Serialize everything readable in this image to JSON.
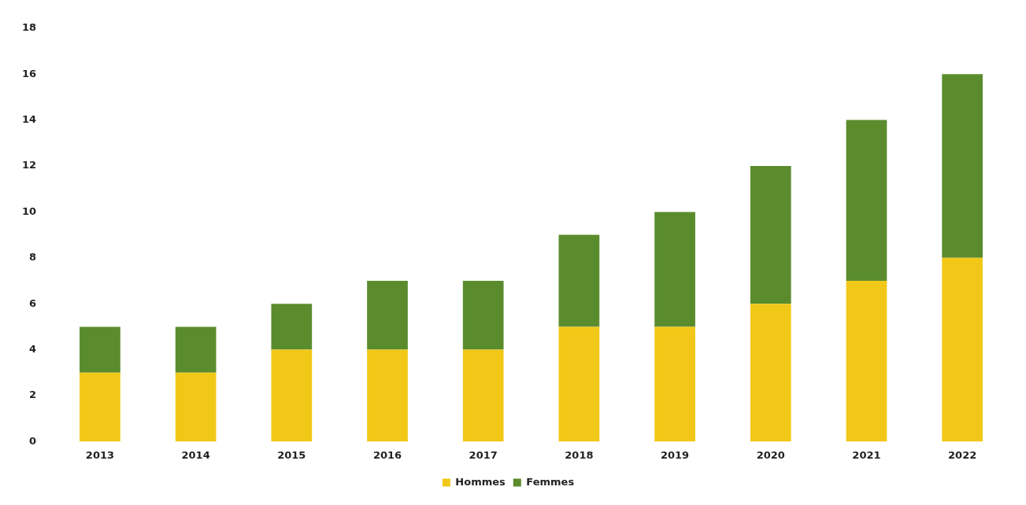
{
  "chart_data": {
    "type": "bar",
    "stacked": true,
    "categories": [
      "2013",
      "2014",
      "2015",
      "2016",
      "2017",
      "2018",
      "2019",
      "2020",
      "2021",
      "2022"
    ],
    "series": [
      {
        "name": "Hommes",
        "color": "#f2c818",
        "values": [
          3,
          3,
          4,
          4,
          4,
          5,
          5,
          6,
          7,
          8
        ]
      },
      {
        "name": "Femmes",
        "color": "#5a8c2e",
        "values": [
          2,
          2,
          2,
          3,
          3,
          4,
          5,
          6,
          7,
          8
        ]
      }
    ],
    "ylim": [
      0,
      18
    ],
    "yticks": [
      0,
      2,
      4,
      6,
      8,
      10,
      12,
      14,
      16,
      18
    ],
    "grid": false,
    "legend": "bottom"
  }
}
